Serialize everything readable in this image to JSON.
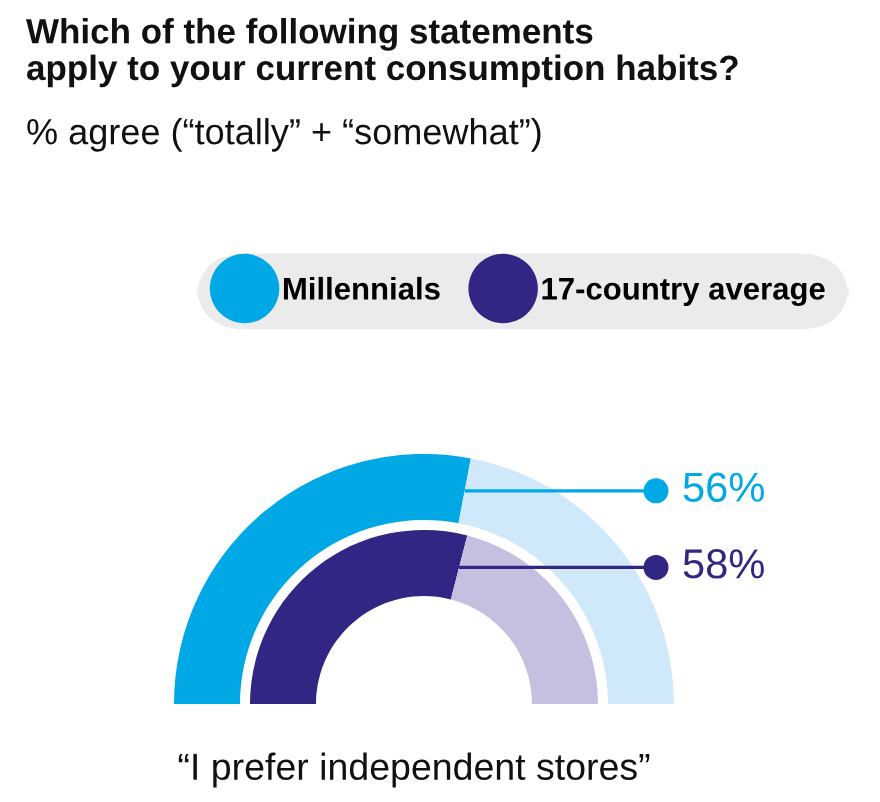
{
  "chart_data": {
    "type": "donut",
    "title": "Which of the following statements\napply to your current consumption habits?",
    "subtitle": "% agree (“totally” + “somewhat”)",
    "annotations": [
      "“I prefer independent stores”"
    ],
    "legend": "top",
    "categories": [
      null,
      null
    ],
    "series": [
      {
        "name": "Millennials",
        "color": "#00a8e6",
        "values": [
          56,
          44
        ],
        "colors": [
          "#00a8e6",
          "#cfe9fa"
        ],
        "value_labels": [
          "56%",
          null
        ]
      },
      {
        "name": "17-country average",
        "color": "#312683",
        "values": [
          58,
          42
        ],
        "colors": [
          "#312683",
          "#c6c0e0"
        ],
        "value_labels": [
          "58%",
          null
        ]
      }
    ]
  }
}
